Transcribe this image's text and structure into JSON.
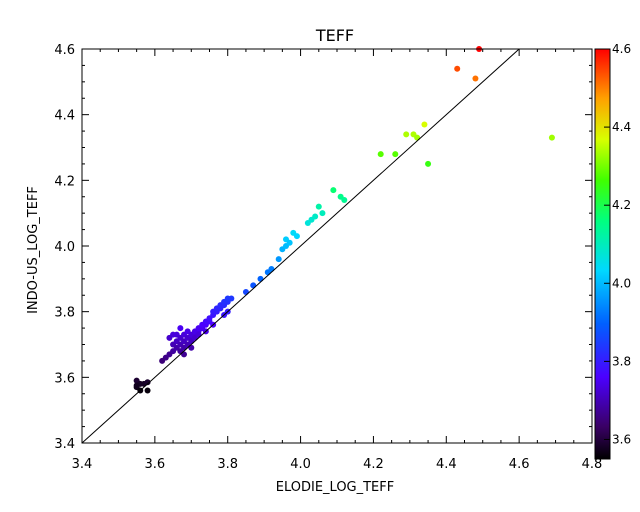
{
  "chart_data": {
    "type": "scatter",
    "title": "TEFF",
    "xlabel": "ELODIE_LOG_TEFF",
    "ylabel": "INDO-US_LOG_TEFF",
    "xlim": [
      3.4,
      4.8
    ],
    "ylim": [
      3.4,
      4.6
    ],
    "xticks": [
      "3.4",
      "3.6",
      "3.8",
      "4.0",
      "4.2",
      "4.4",
      "4.6",
      "4.8"
    ],
    "yticks": [
      "3.4",
      "3.6",
      "3.8",
      "4.0",
      "4.2",
      "4.4",
      "4.6"
    ],
    "grid": false,
    "reference_line": "y = x",
    "colorbar": {
      "range": [
        3.55,
        4.6
      ],
      "colormap": "rainbow",
      "ticks": [
        "3.6",
        "3.8",
        "4.0",
        "4.2",
        "4.4",
        "4.6"
      ]
    },
    "points": [
      {
        "x": 3.55,
        "y": 3.59
      },
      {
        "x": 3.55,
        "y": 3.57
      },
      {
        "x": 3.56,
        "y": 3.58
      },
      {
        "x": 3.56,
        "y": 3.56
      },
      {
        "x": 3.57,
        "y": 3.58
      },
      {
        "x": 3.58,
        "y": 3.56
      },
      {
        "x": 3.58,
        "y": 3.585
      },
      {
        "x": 3.55,
        "y": 3.575
      },
      {
        "x": 3.63,
        "y": 3.66
      },
      {
        "x": 3.64,
        "y": 3.67
      },
      {
        "x": 3.65,
        "y": 3.68
      },
      {
        "x": 3.65,
        "y": 3.7
      },
      {
        "x": 3.66,
        "y": 3.69
      },
      {
        "x": 3.66,
        "y": 3.71
      },
      {
        "x": 3.66,
        "y": 3.73
      },
      {
        "x": 3.67,
        "y": 3.7
      },
      {
        "x": 3.67,
        "y": 3.72
      },
      {
        "x": 3.67,
        "y": 3.68
      },
      {
        "x": 3.68,
        "y": 3.71
      },
      {
        "x": 3.68,
        "y": 3.73
      },
      {
        "x": 3.68,
        "y": 3.69
      },
      {
        "x": 3.69,
        "y": 3.72
      },
      {
        "x": 3.69,
        "y": 3.7
      },
      {
        "x": 3.69,
        "y": 3.74
      },
      {
        "x": 3.7,
        "y": 3.72
      },
      {
        "x": 3.7,
        "y": 3.73
      },
      {
        "x": 3.7,
        "y": 3.71
      },
      {
        "x": 3.71,
        "y": 3.73
      },
      {
        "x": 3.71,
        "y": 3.74
      },
      {
        "x": 3.71,
        "y": 3.72
      },
      {
        "x": 3.72,
        "y": 3.74
      },
      {
        "x": 3.72,
        "y": 3.73
      },
      {
        "x": 3.72,
        "y": 3.75
      },
      {
        "x": 3.73,
        "y": 3.75
      },
      {
        "x": 3.73,
        "y": 3.76
      },
      {
        "x": 3.74,
        "y": 3.76
      },
      {
        "x": 3.74,
        "y": 3.77
      },
      {
        "x": 3.75,
        "y": 3.77
      },
      {
        "x": 3.75,
        "y": 3.78
      },
      {
        "x": 3.76,
        "y": 3.79
      },
      {
        "x": 3.76,
        "y": 3.8
      },
      {
        "x": 3.77,
        "y": 3.8
      },
      {
        "x": 3.77,
        "y": 3.81
      },
      {
        "x": 3.78,
        "y": 3.81
      },
      {
        "x": 3.78,
        "y": 3.82
      },
      {
        "x": 3.79,
        "y": 3.82
      },
      {
        "x": 3.79,
        "y": 3.83
      },
      {
        "x": 3.8,
        "y": 3.83
      },
      {
        "x": 3.8,
        "y": 3.84
      },
      {
        "x": 3.81,
        "y": 3.84
      },
      {
        "x": 3.8,
        "y": 3.8
      },
      {
        "x": 3.79,
        "y": 3.79
      },
      {
        "x": 3.62,
        "y": 3.65
      },
      {
        "x": 3.64,
        "y": 3.72
      },
      {
        "x": 3.65,
        "y": 3.73
      },
      {
        "x": 3.68,
        "y": 3.67
      },
      {
        "x": 3.7,
        "y": 3.69
      },
      {
        "x": 3.67,
        "y": 3.75
      },
      {
        "x": 3.74,
        "y": 3.74
      },
      {
        "x": 3.76,
        "y": 3.76
      },
      {
        "x": 3.85,
        "y": 3.86
      },
      {
        "x": 3.87,
        "y": 3.88
      },
      {
        "x": 3.89,
        "y": 3.9
      },
      {
        "x": 3.91,
        "y": 3.92
      },
      {
        "x": 3.92,
        "y": 3.93
      },
      {
        "x": 3.94,
        "y": 3.96
      },
      {
        "x": 3.95,
        "y": 3.99
      },
      {
        "x": 3.96,
        "y": 4.0
      },
      {
        "x": 3.96,
        "y": 4.02
      },
      {
        "x": 3.97,
        "y": 4.01
      },
      {
        "x": 3.98,
        "y": 4.04
      },
      {
        "x": 3.99,
        "y": 4.03
      },
      {
        "x": 4.02,
        "y": 4.07
      },
      {
        "x": 4.03,
        "y": 4.08
      },
      {
        "x": 4.04,
        "y": 4.09
      },
      {
        "x": 4.05,
        "y": 4.12
      },
      {
        "x": 4.09,
        "y": 4.17
      },
      {
        "x": 4.11,
        "y": 4.15
      },
      {
        "x": 4.12,
        "y": 4.14
      },
      {
        "x": 4.06,
        "y": 4.1
      },
      {
        "x": 4.22,
        "y": 4.28
      },
      {
        "x": 4.26,
        "y": 4.28
      },
      {
        "x": 4.29,
        "y": 4.34
      },
      {
        "x": 4.31,
        "y": 4.34
      },
      {
        "x": 4.32,
        "y": 4.33
      },
      {
        "x": 4.34,
        "y": 4.37
      },
      {
        "x": 4.35,
        "y": 4.25
      },
      {
        "x": 4.43,
        "y": 4.54
      },
      {
        "x": 4.48,
        "y": 4.51
      },
      {
        "x": 4.49,
        "y": 4.6
      },
      {
        "x": 4.69,
        "y": 4.33
      }
    ]
  }
}
